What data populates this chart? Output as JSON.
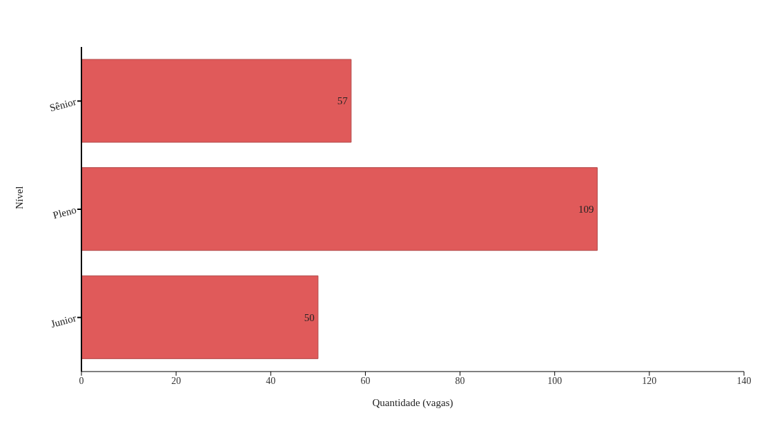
{
  "chart_data": {
    "type": "bar",
    "orientation": "horizontal",
    "categories": [
      "Sênior",
      "Pleno",
      "Junior"
    ],
    "values": [
      57,
      109,
      50
    ],
    "color": "#e05a5a",
    "xlim": [
      0,
      140
    ],
    "xticks": [
      0,
      20,
      40,
      60,
      80,
      100,
      120,
      140
    ],
    "xlabel": "Quantidade (vagas)",
    "ylabel": "Nível",
    "data_labels": true,
    "grid": false
  }
}
